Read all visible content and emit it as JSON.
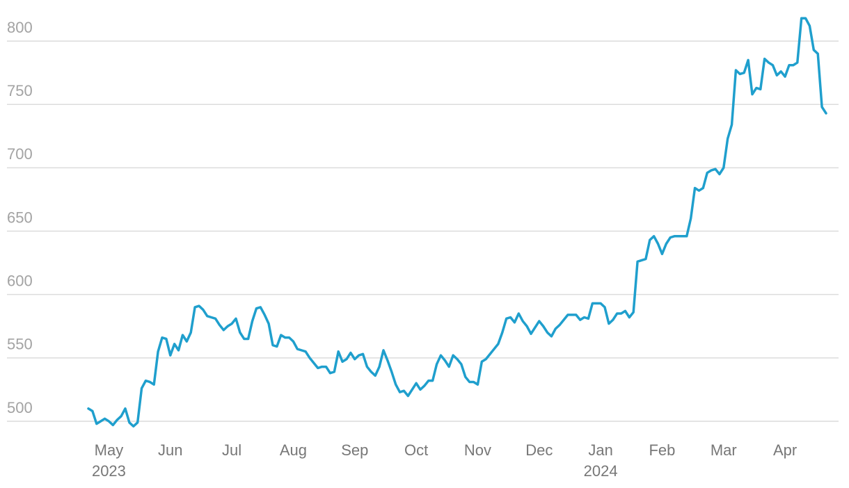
{
  "chart_data": {
    "type": "line",
    "categories": [
      null,
      null,
      null,
      null,
      null,
      "May\n2023",
      null,
      null,
      null,
      null,
      null,
      null,
      null,
      null,
      null,
      null,
      null,
      null,
      null,
      null,
      "Jun",
      null,
      null,
      null,
      null,
      null,
      null,
      null,
      null,
      null,
      null,
      null,
      null,
      null,
      null,
      "Jul",
      null,
      null,
      null,
      null,
      null,
      null,
      null,
      null,
      null,
      null,
      null,
      null,
      null,
      null,
      "Aug",
      null,
      null,
      null,
      null,
      null,
      null,
      null,
      null,
      null,
      null,
      null,
      null,
      null,
      null,
      "Sep",
      null,
      null,
      null,
      null,
      null,
      null,
      null,
      null,
      null,
      null,
      null,
      null,
      null,
      null,
      "Oct",
      null,
      null,
      null,
      null,
      null,
      null,
      null,
      null,
      null,
      null,
      null,
      null,
      null,
      null,
      "Nov",
      null,
      null,
      null,
      null,
      null,
      null,
      null,
      null,
      null,
      null,
      null,
      null,
      null,
      null,
      "Dec",
      null,
      null,
      null,
      null,
      null,
      null,
      null,
      null,
      null,
      null,
      null,
      null,
      null,
      null,
      "Jan\n2024",
      null,
      null,
      null,
      null,
      null,
      null,
      null,
      null,
      null,
      null,
      null,
      null,
      null,
      null,
      "Feb",
      null,
      null,
      null,
      null,
      null,
      null,
      null,
      null,
      null,
      null,
      null,
      null,
      null,
      null,
      "Mar",
      null,
      null,
      null,
      null,
      null,
      null,
      null,
      null,
      null,
      null,
      null,
      null,
      null,
      null,
      "Apr",
      null,
      null,
      null,
      null,
      null,
      null,
      null,
      null,
      null,
      null
    ],
    "values": [
      510,
      508,
      498,
      500,
      502,
      500,
      497,
      501,
      504,
      510,
      499,
      496,
      499,
      526,
      532,
      531,
      529,
      555,
      566,
      565,
      552,
      561,
      556,
      568,
      563,
      570,
      590,
      591,
      588,
      583,
      582,
      581,
      576,
      572,
      575,
      577,
      581,
      570,
      565,
      565,
      579,
      589,
      590,
      584,
      577,
      560,
      559,
      568,
      566,
      566,
      563,
      557,
      556,
      555,
      550,
      546,
      542,
      543,
      543,
      538,
      539,
      555,
      547,
      549,
      554,
      549,
      552,
      553,
      543,
      539,
      536,
      543,
      556,
      548,
      539,
      529,
      523,
      524,
      520,
      525,
      530,
      525,
      528,
      532,
      532,
      545,
      552,
      548,
      543,
      552,
      549,
      545,
      535,
      531,
      531,
      529,
      547,
      549,
      553,
      557,
      561,
      570,
      581,
      582,
      578,
      585,
      579,
      575,
      569,
      574,
      579,
      575,
      570,
      567,
      573,
      576,
      580,
      584,
      584,
      584,
      580,
      582,
      581,
      593,
      593,
      593,
      590,
      577,
      580,
      585,
      585,
      587,
      582,
      586,
      626,
      627,
      628,
      643,
      646,
      640,
      632,
      640,
      645,
      646,
      646,
      646,
      646,
      660,
      684,
      682,
      684,
      696,
      698,
      699,
      695,
      700,
      723,
      734,
      777,
      774,
      775,
      785,
      758,
      763,
      762,
      786,
      783,
      781,
      773,
      776,
      772,
      781,
      781,
      783,
      818,
      818,
      812,
      793,
      790,
      748,
      743
    ],
    "color": "#1f9fcd",
    "ylim": [
      490,
      825
    ],
    "yticks": [
      500,
      550,
      600,
      650,
      700,
      750,
      800
    ],
    "grid": true
  }
}
